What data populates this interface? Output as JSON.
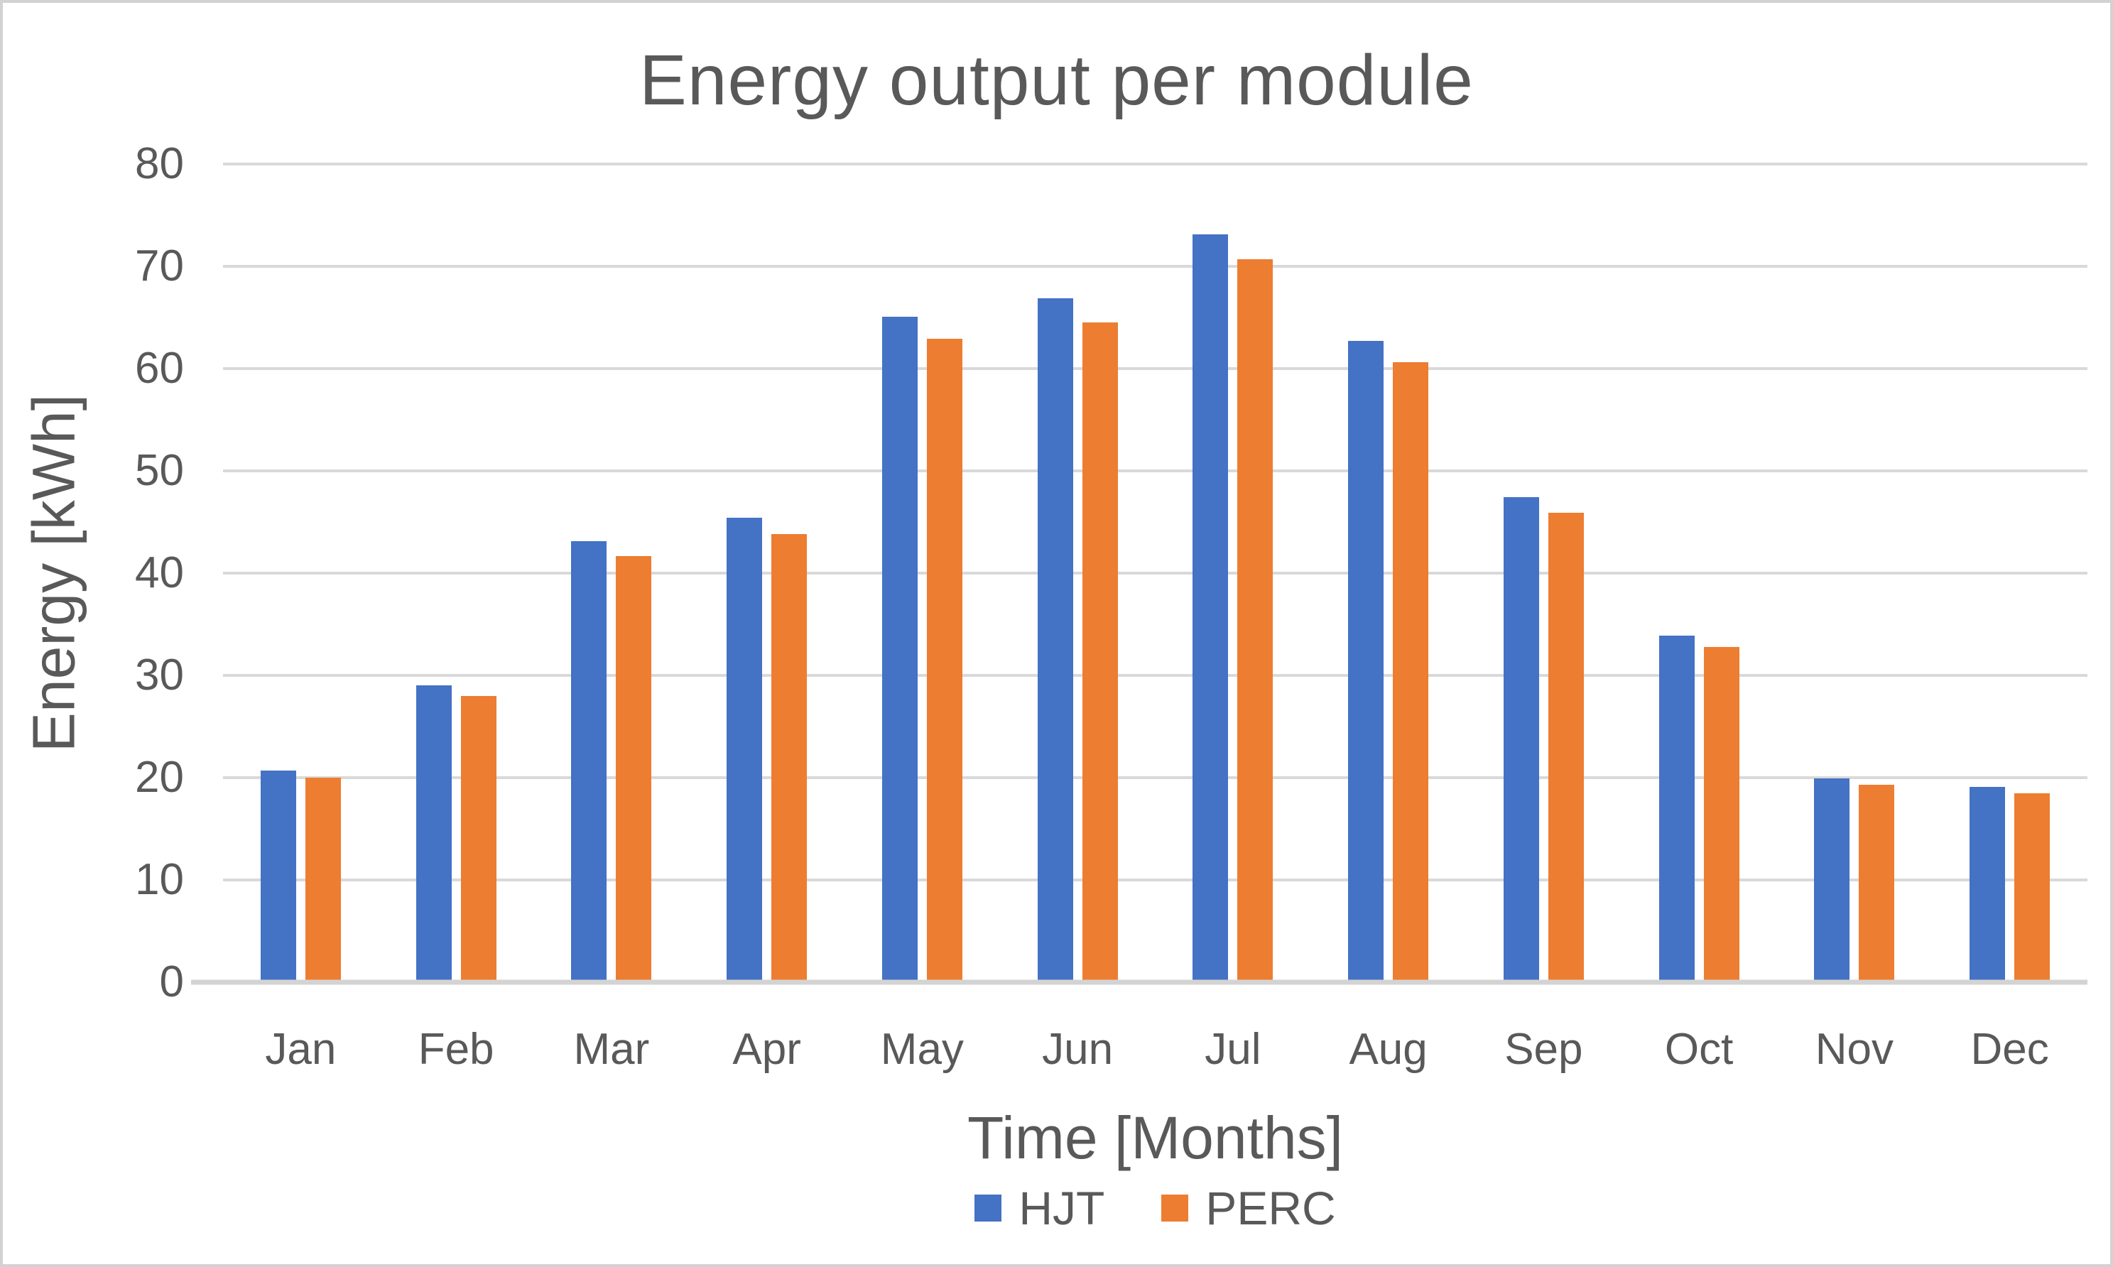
{
  "title": "Energy output per module",
  "chart_data": {
    "type": "bar",
    "categories": [
      "Jan",
      "Feb",
      "Mar",
      "Apr",
      "May",
      "Jun",
      "Jul",
      "Aug",
      "Sep",
      "Oct",
      "Nov",
      "Dec"
    ],
    "series": [
      {
        "name": "HJT",
        "color": "#4472C4",
        "values": [
          20.7,
          29.0,
          43.1,
          45.4,
          65.1,
          66.9,
          73.1,
          62.7,
          47.4,
          33.9,
          19.9,
          19.1
        ]
      },
      {
        "name": "PERC",
        "color": "#ED7D31",
        "values": [
          20.0,
          28.0,
          41.7,
          43.8,
          62.9,
          64.5,
          70.7,
          60.6,
          45.9,
          32.8,
          19.3,
          18.5
        ]
      }
    ],
    "xlabel": "Time [Months]",
    "ylabel": "Energy [kWh]",
    "ylim": [
      0,
      80
    ],
    "yticks": [
      0,
      10,
      20,
      30,
      40,
      50,
      60,
      70,
      80
    ],
    "grid": true,
    "legend_position": "bottom"
  },
  "colors": {
    "hjt": "#4472C4",
    "perc": "#ED7D31",
    "gridline": "#D9D9D9",
    "axis_line": "#D3D3D3",
    "text": "#595959",
    "frame_border": "#D2D2D2",
    "background": "#FFFFFF"
  }
}
